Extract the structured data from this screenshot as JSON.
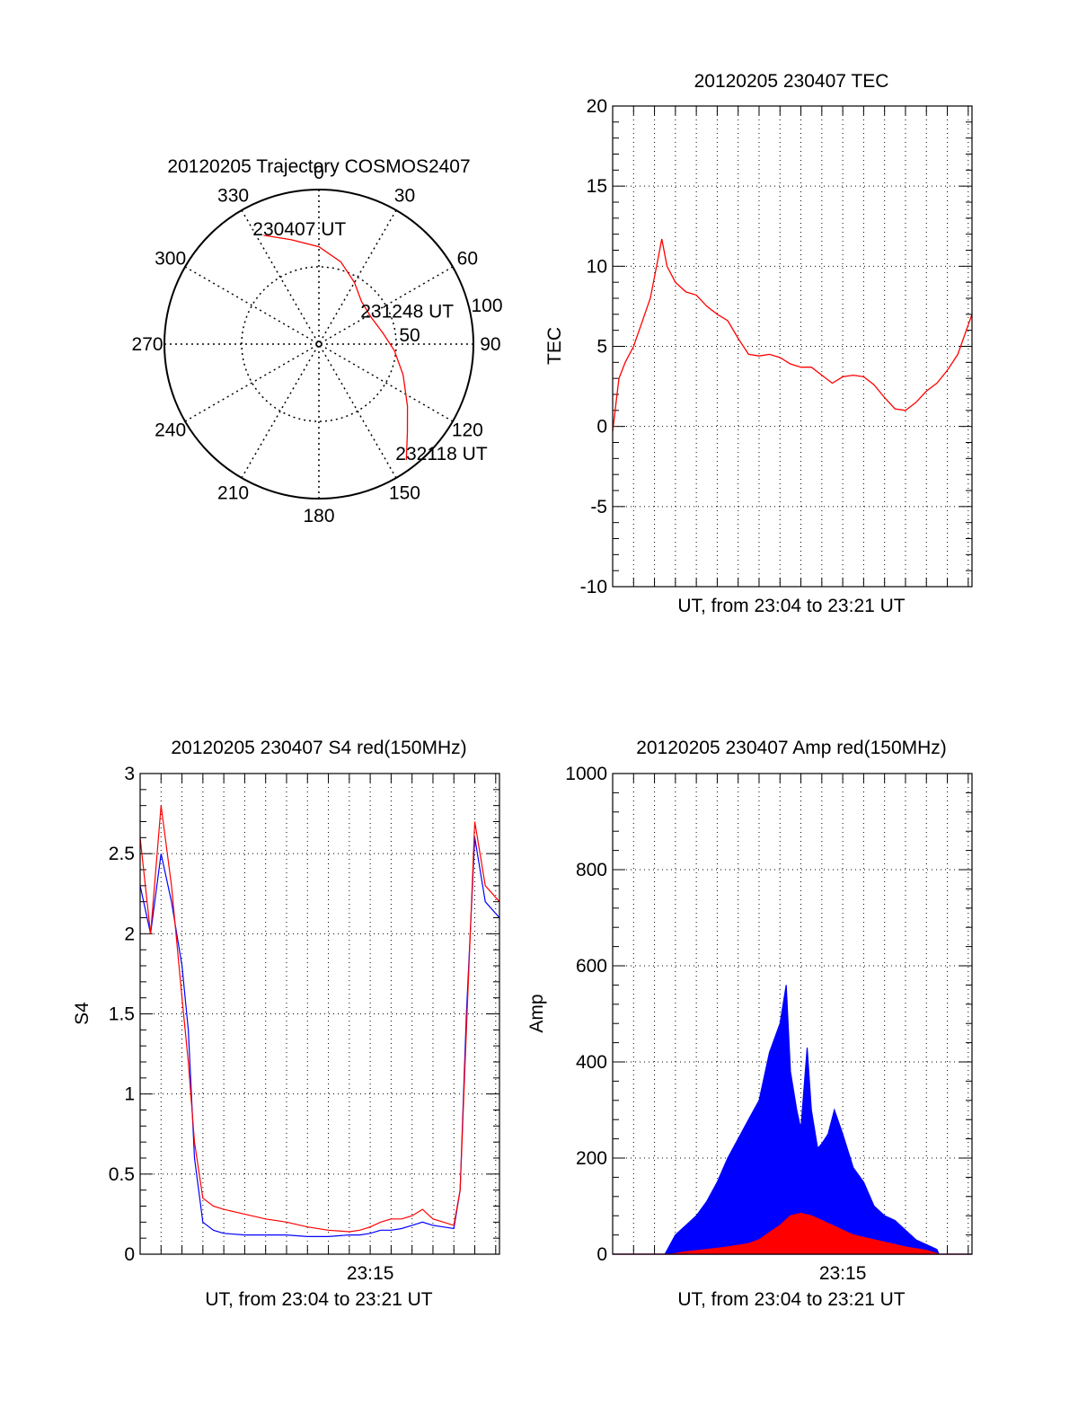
{
  "colors": {
    "red": "#ff0000",
    "blue": "#0000ff",
    "axis": "#000000",
    "grid": "#000000"
  },
  "chart_data": [
    {
      "type": "polar",
      "title": "20120205 Trajectory COSMOS2407",
      "angle_labels": [
        "0",
        "30",
        "60",
        "90",
        "120",
        "150",
        "180",
        "210",
        "240",
        "270",
        "300",
        "330"
      ],
      "radial_labels": [
        "50",
        "100"
      ],
      "rmax": 100,
      "grid": true,
      "annotations": [
        {
          "text": "230407 UT",
          "az": 333,
          "r": 79
        },
        {
          "text": "231248 UT",
          "az": 63,
          "r": 38
        },
        {
          "text": "232118 UT",
          "az": 143,
          "r": 94
        }
      ],
      "series": [
        {
          "color": "#ff0000",
          "points": [
            [
              333,
              79
            ],
            [
              345,
              70
            ],
            [
              0,
              63
            ],
            [
              15,
              55
            ],
            [
              30,
              46
            ],
            [
              45,
              39
            ],
            [
              63,
              38
            ],
            [
              80,
              42
            ],
            [
              95,
              49
            ],
            [
              110,
              58
            ],
            [
              125,
              70
            ],
            [
              135,
              81
            ],
            [
              143,
              94
            ]
          ]
        }
      ]
    },
    {
      "type": "line",
      "title": "20120205 230407 TEC",
      "ylabel": "TEC",
      "xlabel": "UT, from 23:04 to 23:21 UT",
      "xlim": [
        0,
        17.18
      ],
      "ylim": [
        -10,
        20
      ],
      "yticks": [
        "20",
        "15",
        "10",
        "5",
        "0",
        "-5",
        "-10"
      ],
      "xticks": [],
      "grid": true,
      "series": [
        {
          "color": "#ff0000",
          "x": [
            0.0,
            0.3,
            0.6,
            1.0,
            1.4,
            1.8,
            2.1,
            2.35,
            2.6,
            3.0,
            3.5,
            4.0,
            4.5,
            5.0,
            5.5,
            6.0,
            6.5,
            7.0,
            7.5,
            8.0,
            8.5,
            9.0,
            9.5,
            10.0,
            10.5,
            11.0,
            11.5,
            12.0,
            12.5,
            13.0,
            13.5,
            14.0,
            14.5,
            15.0,
            15.5,
            16.0,
            16.5,
            17.18
          ],
          "y": [
            -0.3,
            3.0,
            4.0,
            5.0,
            6.5,
            8.0,
            10.0,
            11.7,
            10.0,
            9.0,
            8.4,
            8.2,
            7.5,
            7.0,
            6.6,
            5.5,
            4.5,
            4.4,
            4.5,
            4.3,
            3.9,
            3.7,
            3.7,
            3.2,
            2.7,
            3.1,
            3.2,
            3.1,
            2.6,
            1.8,
            1.1,
            1.0,
            1.5,
            2.2,
            2.7,
            3.5,
            4.5,
            7.0
          ]
        }
      ]
    },
    {
      "type": "line",
      "title": "20120205 230407 S4 red(150MHz)",
      "ylabel": "S4",
      "xlabel": "UT, from 23:04 to 23:21 UT",
      "xlim": [
        0,
        17.18
      ],
      "ylim": [
        0,
        3
      ],
      "yticks": [
        "3",
        "2.5",
        "2",
        "1.5",
        "1",
        "0.5",
        "0"
      ],
      "xticks": [
        "23:15"
      ],
      "grid": true,
      "series": [
        {
          "color": "#0000ff",
          "x": [
            0.0,
            0.5,
            1.0,
            1.5,
            2.0,
            2.3,
            2.6,
            3.0,
            3.5,
            4.0,
            5.0,
            6.0,
            7.0,
            8.0,
            9.0,
            10.0,
            10.5,
            11.0,
            11.5,
            12.0,
            12.5,
            13.0,
            13.5,
            14.0,
            14.5,
            15.0,
            15.3,
            15.6,
            16.0,
            16.5,
            17.18
          ],
          "y": [
            2.3,
            2.0,
            2.5,
            2.2,
            1.8,
            1.4,
            0.6,
            0.2,
            0.15,
            0.13,
            0.12,
            0.12,
            0.12,
            0.11,
            0.11,
            0.12,
            0.12,
            0.13,
            0.15,
            0.15,
            0.16,
            0.18,
            0.2,
            0.18,
            0.17,
            0.16,
            0.4,
            1.5,
            2.6,
            2.2,
            2.1
          ]
        },
        {
          "color": "#ff0000",
          "x": [
            0.0,
            0.5,
            1.0,
            1.5,
            2.0,
            2.3,
            2.6,
            3.0,
            3.5,
            4.0,
            5.0,
            6.0,
            7.0,
            8.0,
            9.0,
            10.0,
            10.5,
            11.0,
            11.5,
            12.0,
            12.5,
            13.0,
            13.5,
            14.0,
            14.5,
            15.0,
            15.3,
            15.6,
            16.0,
            16.5,
            17.18
          ],
          "y": [
            2.6,
            2.0,
            2.8,
            2.3,
            1.6,
            1.2,
            0.7,
            0.35,
            0.3,
            0.28,
            0.25,
            0.22,
            0.2,
            0.17,
            0.15,
            0.14,
            0.15,
            0.17,
            0.2,
            0.22,
            0.22,
            0.24,
            0.28,
            0.22,
            0.2,
            0.18,
            0.4,
            1.4,
            2.7,
            2.3,
            2.2
          ]
        }
      ]
    },
    {
      "type": "area",
      "title": "20120205 230407 Amp red(150MHz)",
      "ylabel": "Amp",
      "xlabel": "UT, from 23:04 to 23:21 UT",
      "xlim": [
        0,
        17.18
      ],
      "ylim": [
        0,
        1000
      ],
      "yticks": [
        "1000",
        "800",
        "600",
        "400",
        "200",
        "0"
      ],
      "xticks": [
        "23:15"
      ],
      "grid": true,
      "series": [
        {
          "color": "#0000ff",
          "x": [
            0.0,
            2.5,
            3.0,
            3.5,
            4.0,
            4.5,
            5.0,
            5.5,
            6.0,
            6.5,
            7.0,
            7.5,
            8.0,
            8.3,
            8.5,
            8.8,
            9.0,
            9.3,
            9.5,
            9.8,
            10.0,
            10.3,
            10.6,
            11.0,
            11.5,
            12.0,
            12.5,
            13.0,
            13.5,
            14.0,
            14.5,
            15.0,
            15.5,
            15.6,
            17.18
          ],
          "y": [
            0,
            0,
            40,
            60,
            80,
            110,
            150,
            200,
            240,
            280,
            320,
            420,
            480,
            560,
            380,
            300,
            260,
            430,
            300,
            220,
            230,
            250,
            300,
            250,
            180,
            150,
            100,
            80,
            70,
            50,
            30,
            20,
            10,
            0,
            0
          ]
        },
        {
          "color": "#ff0000",
          "x": [
            0.0,
            2.8,
            3.5,
            4.5,
            5.5,
            6.5,
            7.0,
            7.5,
            8.0,
            8.5,
            9.0,
            9.5,
            10.0,
            10.5,
            11.0,
            11.5,
            12.0,
            12.5,
            13.0,
            14.0,
            15.0,
            15.6,
            17.18
          ],
          "y": [
            0,
            0,
            5,
            10,
            15,
            22,
            30,
            45,
            60,
            80,
            85,
            80,
            70,
            60,
            50,
            40,
            35,
            30,
            25,
            15,
            8,
            0,
            0
          ]
        }
      ]
    }
  ]
}
